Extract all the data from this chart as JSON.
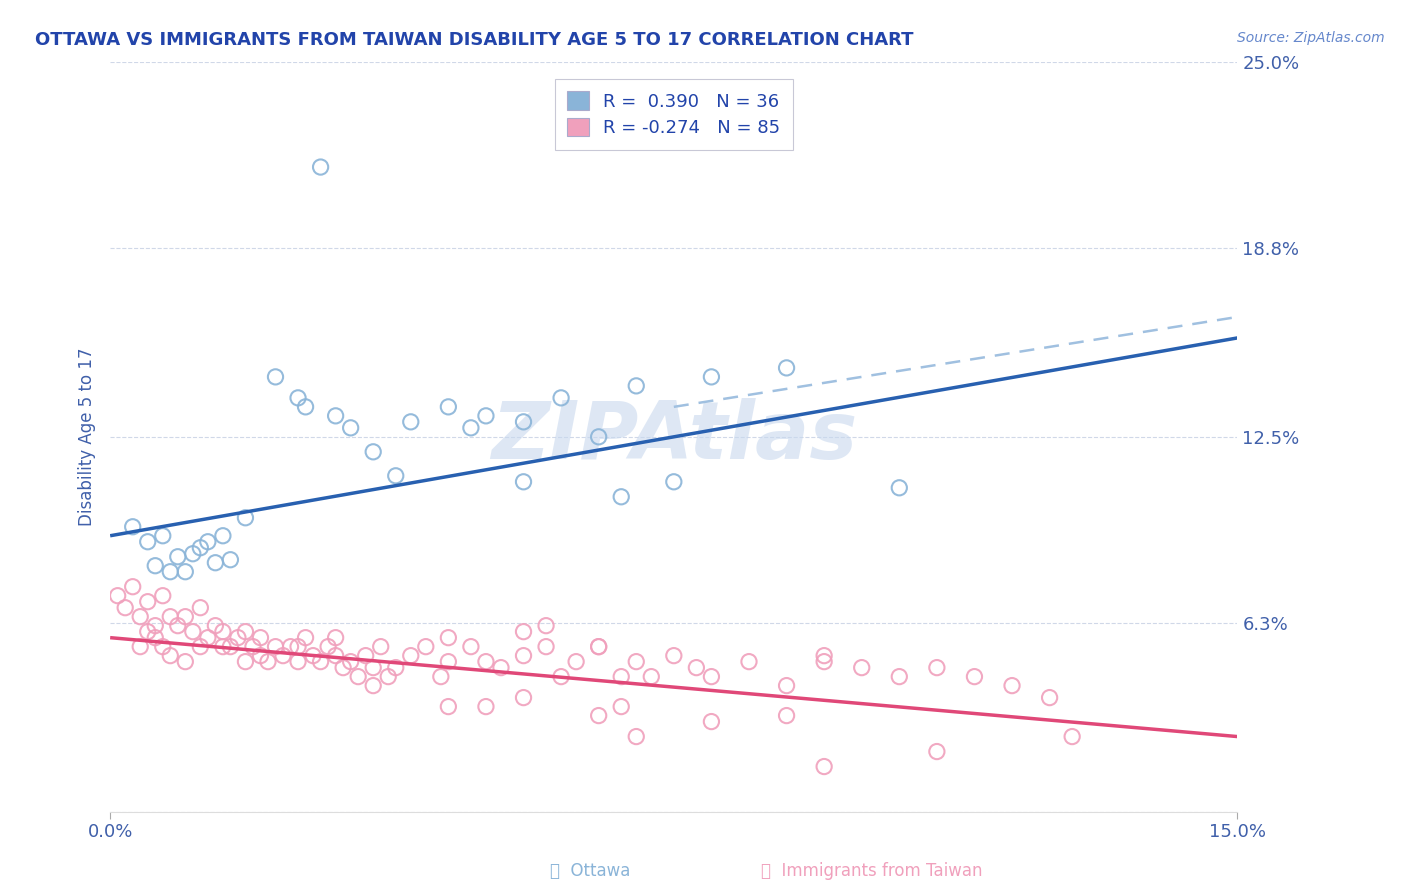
{
  "title": "OTTAWA VS IMMIGRANTS FROM TAIWAN DISABILITY AGE 5 TO 17 CORRELATION CHART",
  "source": "Source: ZipAtlas.com",
  "ylabel": "Disability Age 5 to 17",
  "xlim": [
    0.0,
    15.0
  ],
  "ylim": [
    0.0,
    25.0
  ],
  "y_ticks": [
    0.0,
    6.3,
    12.5,
    18.8,
    25.0
  ],
  "y_tick_labels": [
    "",
    "6.3%",
    "12.5%",
    "18.8%",
    "25.0%"
  ],
  "ottawa_color": "#8ab4d8",
  "taiwan_color": "#f0a0bc",
  "trend_ottawa_color": "#2860b0",
  "trend_taiwan_color": "#e04878",
  "dashed_color": "#a0c0e0",
  "background_color": "#ffffff",
  "grid_color": "#d0d8e8",
  "title_color": "#2244aa",
  "tick_color": "#4060aa",
  "source_color": "#6688cc",
  "watermark_color": "#c8d8ee",
  "legend_text_color": "#2244aa",
  "ottawa_scatter": [
    [
      0.3,
      9.5
    ],
    [
      0.5,
      9.0
    ],
    [
      0.6,
      8.2
    ],
    [
      0.7,
      9.2
    ],
    [
      0.8,
      8.0
    ],
    [
      0.9,
      8.5
    ],
    [
      1.0,
      8.0
    ],
    [
      1.1,
      8.6
    ],
    [
      1.2,
      8.8
    ],
    [
      1.3,
      9.0
    ],
    [
      1.4,
      8.3
    ],
    [
      1.5,
      9.2
    ],
    [
      1.6,
      8.4
    ],
    [
      1.8,
      9.8
    ],
    [
      2.2,
      14.5
    ],
    [
      2.5,
      13.8
    ],
    [
      2.6,
      13.5
    ],
    [
      3.0,
      13.2
    ],
    [
      3.2,
      12.8
    ],
    [
      3.5,
      12.0
    ],
    [
      4.0,
      13.0
    ],
    [
      4.5,
      13.5
    ],
    [
      4.8,
      12.8
    ],
    [
      5.0,
      13.2
    ],
    [
      5.5,
      13.0
    ],
    [
      6.0,
      13.8
    ],
    [
      6.5,
      12.5
    ],
    [
      7.0,
      14.2
    ],
    [
      7.5,
      11.0
    ],
    [
      8.0,
      14.5
    ],
    [
      9.0,
      14.8
    ],
    [
      10.5,
      10.8
    ],
    [
      2.8,
      21.5
    ],
    [
      6.8,
      10.5
    ],
    [
      5.5,
      11.0
    ],
    [
      3.8,
      11.2
    ]
  ],
  "taiwan_scatter": [
    [
      0.1,
      7.2
    ],
    [
      0.2,
      6.8
    ],
    [
      0.3,
      7.5
    ],
    [
      0.4,
      6.5
    ],
    [
      0.5,
      7.0
    ],
    [
      0.6,
      6.2
    ],
    [
      0.7,
      7.2
    ],
    [
      0.8,
      6.5
    ],
    [
      0.9,
      6.2
    ],
    [
      1.0,
      6.5
    ],
    [
      1.1,
      6.0
    ],
    [
      1.2,
      6.8
    ],
    [
      1.3,
      5.8
    ],
    [
      1.4,
      6.2
    ],
    [
      1.5,
      6.0
    ],
    [
      1.6,
      5.5
    ],
    [
      1.7,
      5.8
    ],
    [
      1.8,
      6.0
    ],
    [
      1.9,
      5.5
    ],
    [
      2.0,
      5.8
    ],
    [
      2.1,
      5.0
    ],
    [
      2.2,
      5.5
    ],
    [
      2.3,
      5.2
    ],
    [
      2.4,
      5.5
    ],
    [
      2.5,
      5.0
    ],
    [
      2.6,
      5.8
    ],
    [
      2.7,
      5.2
    ],
    [
      2.8,
      5.0
    ],
    [
      2.9,
      5.5
    ],
    [
      3.0,
      5.2
    ],
    [
      3.1,
      4.8
    ],
    [
      3.2,
      5.0
    ],
    [
      3.3,
      4.5
    ],
    [
      3.4,
      5.2
    ],
    [
      3.5,
      4.8
    ],
    [
      3.6,
      5.5
    ],
    [
      3.7,
      4.5
    ],
    [
      3.8,
      4.8
    ],
    [
      4.0,
      5.2
    ],
    [
      4.2,
      5.5
    ],
    [
      4.4,
      4.5
    ],
    [
      4.5,
      5.0
    ],
    [
      4.8,
      5.5
    ],
    [
      5.0,
      5.0
    ],
    [
      5.2,
      4.8
    ],
    [
      5.5,
      5.2
    ],
    [
      5.8,
      5.5
    ],
    [
      6.0,
      4.5
    ],
    [
      6.2,
      5.0
    ],
    [
      6.5,
      5.5
    ],
    [
      6.8,
      4.5
    ],
    [
      7.0,
      5.0
    ],
    [
      7.2,
      4.5
    ],
    [
      7.5,
      5.2
    ],
    [
      7.8,
      4.8
    ],
    [
      8.0,
      4.5
    ],
    [
      8.5,
      5.0
    ],
    [
      9.0,
      4.2
    ],
    [
      9.5,
      5.0
    ],
    [
      10.0,
      4.8
    ],
    [
      10.5,
      4.5
    ],
    [
      11.0,
      4.8
    ],
    [
      11.5,
      4.5
    ],
    [
      12.0,
      4.2
    ],
    [
      12.5,
      3.8
    ],
    [
      0.4,
      5.5
    ],
    [
      0.5,
      6.0
    ],
    [
      0.6,
      5.8
    ],
    [
      0.7,
      5.5
    ],
    [
      0.8,
      5.2
    ],
    [
      1.0,
      5.0
    ],
    [
      1.2,
      5.5
    ],
    [
      1.5,
      5.5
    ],
    [
      1.8,
      5.0
    ],
    [
      2.0,
      5.2
    ],
    [
      2.5,
      5.5
    ],
    [
      3.0,
      5.8
    ],
    [
      4.5,
      5.8
    ],
    [
      5.5,
      6.0
    ],
    [
      5.8,
      6.2
    ],
    [
      6.5,
      5.5
    ],
    [
      9.5,
      5.2
    ],
    [
      11.0,
      2.0
    ],
    [
      7.0,
      2.5
    ],
    [
      12.8,
      2.5
    ],
    [
      3.5,
      4.2
    ],
    [
      4.5,
      3.5
    ],
    [
      5.0,
      3.5
    ],
    [
      5.5,
      3.8
    ],
    [
      6.5,
      3.2
    ],
    [
      6.8,
      3.5
    ],
    [
      8.0,
      3.0
    ],
    [
      9.0,
      3.2
    ],
    [
      9.5,
      1.5
    ]
  ],
  "ottawa_trend": [
    0.0,
    9.2,
    15.0,
    15.8
  ],
  "taiwan_trend": [
    0.0,
    5.8,
    15.0,
    2.5
  ],
  "dashed_trend": [
    7.5,
    13.5,
    15.0,
    16.5
  ]
}
